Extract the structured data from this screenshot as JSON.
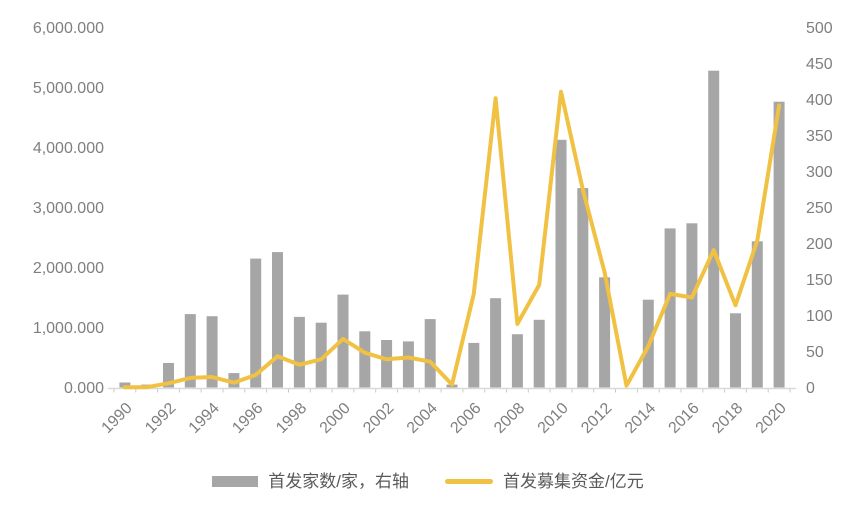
{
  "chart_data": {
    "type": "bar",
    "subtype": "combo-bar-line-dual-axis",
    "title": "",
    "categories": [
      "1990",
      "1991",
      "1992",
      "1993",
      "1994",
      "1995",
      "1996",
      "1997",
      "1998",
      "1999",
      "2000",
      "2001",
      "2002",
      "2003",
      "2004",
      "2005",
      "2006",
      "2007",
      "2008",
      "2009",
      "2010",
      "2011",
      "2012",
      "2013",
      "2014",
      "2015",
      "2016",
      "2017",
      "2018",
      "2019",
      "2020"
    ],
    "series": [
      {
        "name": "首发家数/家，右轴",
        "type": "bar",
        "axis": "right",
        "color": "#a6a6a6",
        "values": [
          7,
          4,
          34,
          102,
          99,
          20,
          179,
          188,
          98,
          90,
          129,
          78,
          66,
          64,
          95,
          4,
          62,
          124,
          74,
          94,
          344,
          277,
          153,
          0,
          122,
          221,
          228,
          440,
          103,
          203,
          397
        ]
      },
      {
        "name": "首发募集资金/亿元",
        "type": "line",
        "axis": "left",
        "color": "#f0c142",
        "values": [
          5,
          5,
          70,
          160,
          175,
          80,
          210,
          520,
          380,
          470,
          810,
          580,
          470,
          500,
          430,
          50,
          1560,
          4820,
          1060,
          1710,
          4930,
          3300,
          1920,
          30,
          690,
          1560,
          1500,
          2290,
          1370,
          2450,
          4700
        ]
      }
    ],
    "left_axis": {
      "min": 0,
      "max": 6000,
      "tick_labels_bottom_to_top": [
        "0.000",
        "1,000.000",
        "2,000.000",
        "3,000.000",
        "4,000.000",
        "5,000.000",
        "6,000.000"
      ]
    },
    "right_axis": {
      "min": 0,
      "max": 500,
      "tick_labels_bottom_to_top": [
        "0",
        "50",
        "100",
        "150",
        "200",
        "250",
        "300",
        "350",
        "400",
        "450",
        "500"
      ]
    },
    "x_axis": {
      "tick_labels": [
        "1990",
        "1992",
        "1994",
        "1996",
        "1998",
        "2000",
        "2002",
        "2004",
        "2006",
        "2008",
        "2010",
        "2012",
        "2014",
        "2016",
        "2018",
        "2020"
      ],
      "label_rotation_deg": -45
    },
    "legend": [
      {
        "label": "首发家数/家，右轴",
        "swatch": "bar",
        "color": "#a6a6a6"
      },
      {
        "label": "首发募集资金/亿元",
        "swatch": "line",
        "color": "#f0c142"
      }
    ],
    "grid": "off",
    "legend_position": "bottom-center",
    "styles": {
      "axis_text_color": "#7f7f7f",
      "legend_text_color": "#595959",
      "axis_line_color": "#d9d9d9",
      "tick_mark_color": "#c9c9c9",
      "background": "#ffffff"
    }
  }
}
